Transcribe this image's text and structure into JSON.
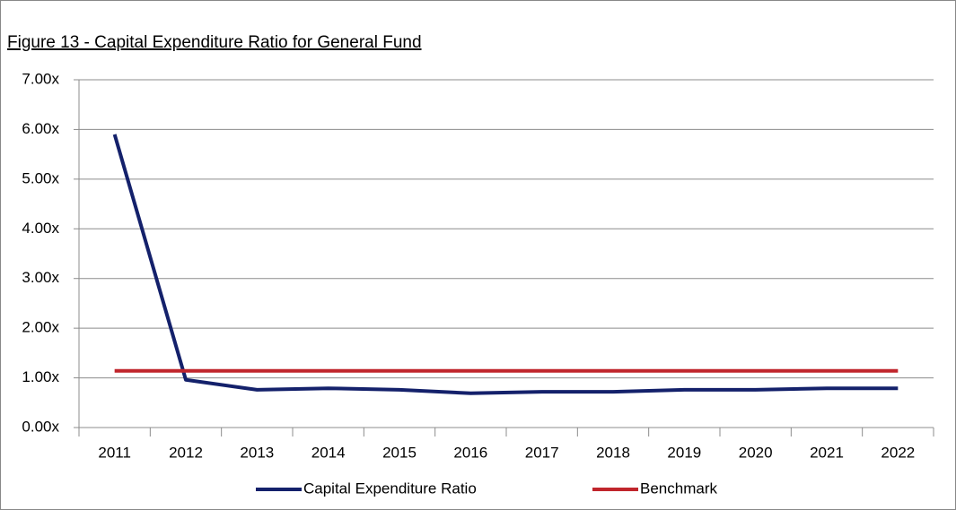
{
  "chart_data": {
    "type": "line",
    "title": "Figure 13 - Capital Expenditure Ratio for General Fund",
    "categories": [
      "2011",
      "2012",
      "2013",
      "2014",
      "2015",
      "2016",
      "2017",
      "2018",
      "2019",
      "2020",
      "2021",
      "2022"
    ],
    "series": [
      {
        "name": "Capital Expenditure Ratio",
        "color": "#14216b",
        "values": [
          5.9,
          0.96,
          0.76,
          0.79,
          0.76,
          0.69,
          0.72,
          0.72,
          0.76,
          0.76,
          0.79,
          0.79
        ]
      },
      {
        "name": "Benchmark",
        "color": "#c0252c",
        "values": [
          1.14,
          1.14,
          1.14,
          1.14,
          1.14,
          1.14,
          1.14,
          1.14,
          1.14,
          1.14,
          1.14,
          1.14
        ]
      }
    ],
    "ylim": [
      0,
      7
    ],
    "yticks": [
      {
        "value": 0,
        "label": "0.00x"
      },
      {
        "value": 1,
        "label": "1.00x"
      },
      {
        "value": 2,
        "label": "2.00x"
      },
      {
        "value": 3,
        "label": "3.00x"
      },
      {
        "value": 4,
        "label": "4.00x"
      },
      {
        "value": 5,
        "label": "5.00x"
      },
      {
        "value": 6,
        "label": "6.00x"
      },
      {
        "value": 7,
        "label": "7.00x"
      }
    ],
    "grid": true,
    "legend": "bottom"
  }
}
